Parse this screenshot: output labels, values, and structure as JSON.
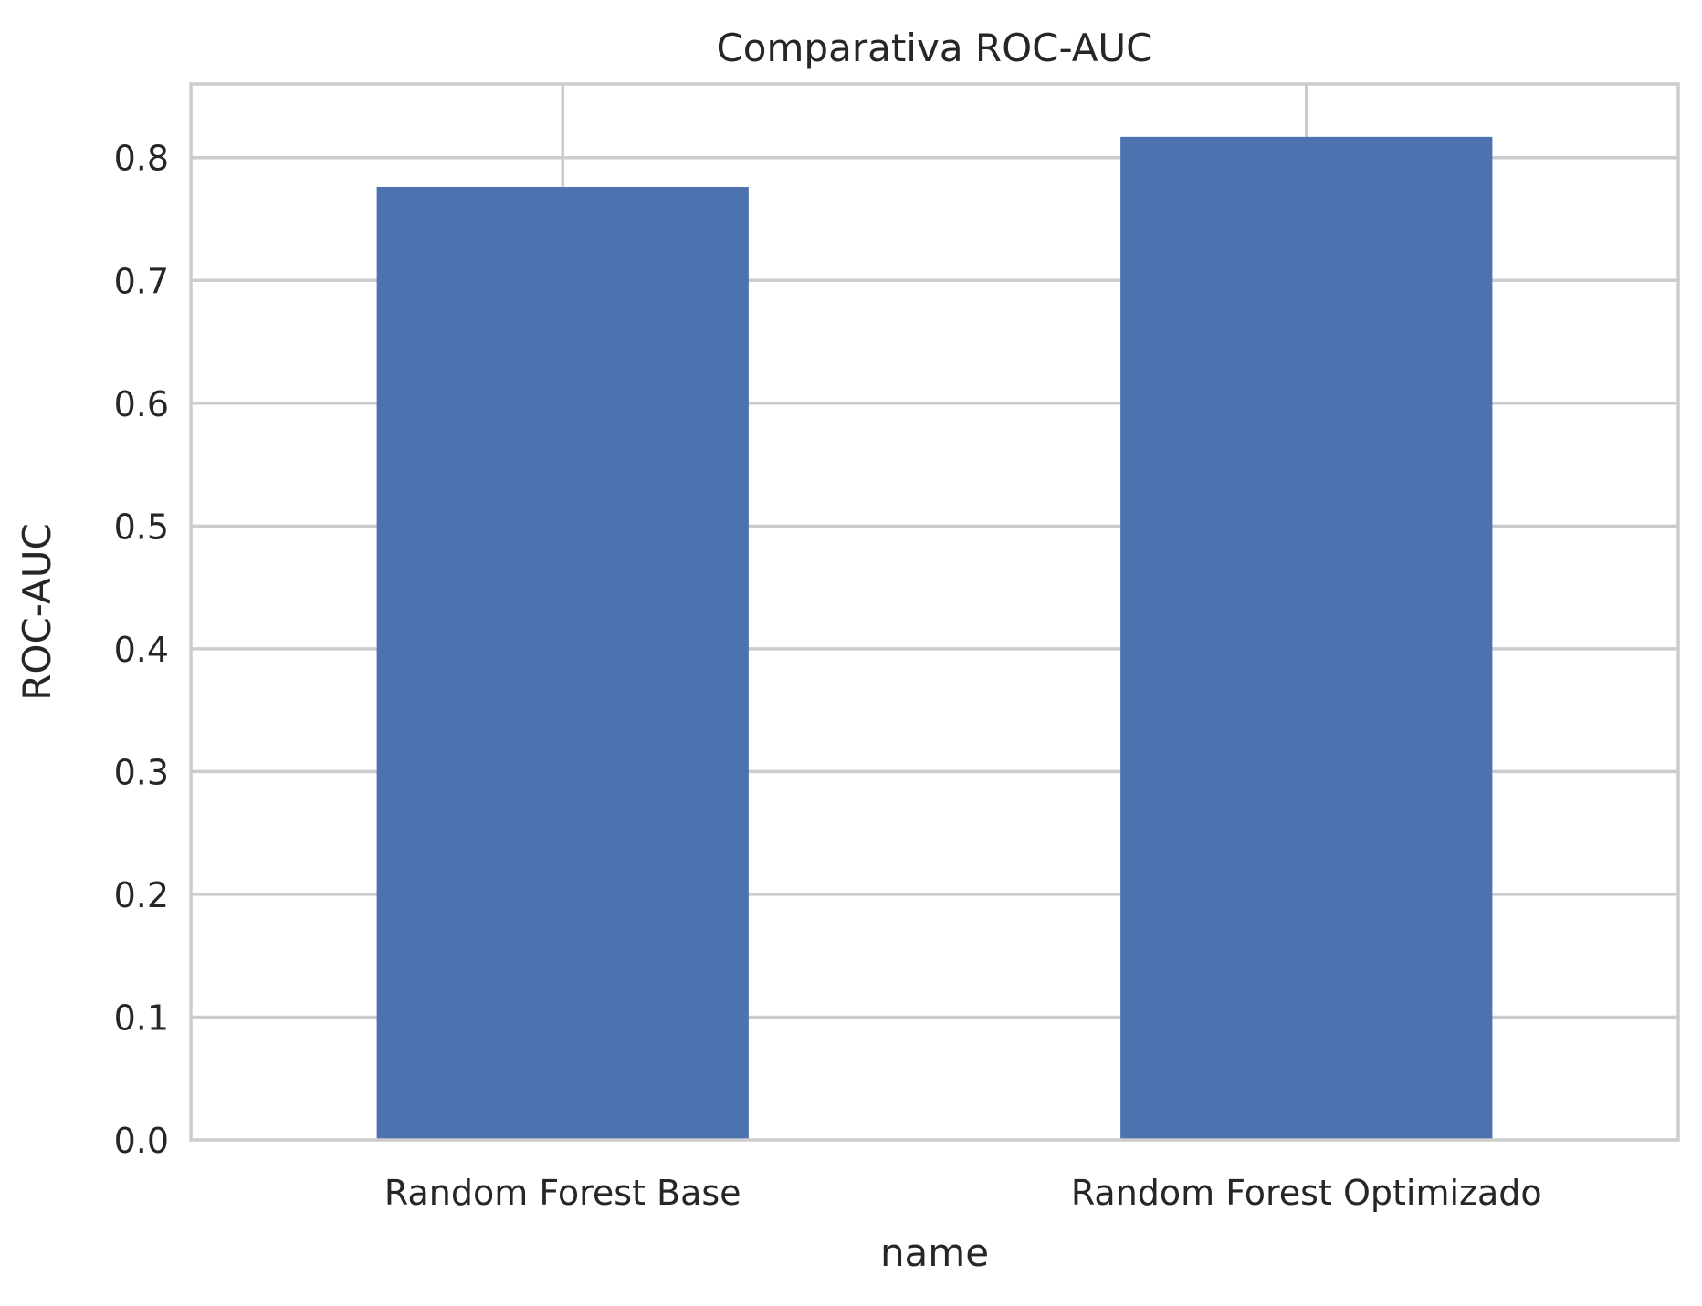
{
  "chart_data": {
    "type": "bar",
    "title": "Comparativa ROC-AUC",
    "xlabel": "name",
    "ylabel": "ROC-AUC",
    "categories": [
      "Random Forest Base",
      "Random Forest Optimizado"
    ],
    "values": [
      0.776,
      0.817
    ],
    "ylim": [
      0,
      0.86
    ],
    "yticks": [
      0.0,
      0.1,
      0.2,
      0.3,
      0.4,
      0.5,
      0.6,
      0.7,
      0.8
    ],
    "ytick_labels": [
      "0.0",
      "0.1",
      "0.2",
      "0.3",
      "0.4",
      "0.5",
      "0.6",
      "0.7",
      "0.8"
    ],
    "grid": true,
    "legend": "none",
    "colors": {
      "bar": "#4c72b0",
      "grid": "#cccccc",
      "axes_edge": "#cccccc",
      "text": "#262626",
      "background": "#ffffff"
    }
  }
}
